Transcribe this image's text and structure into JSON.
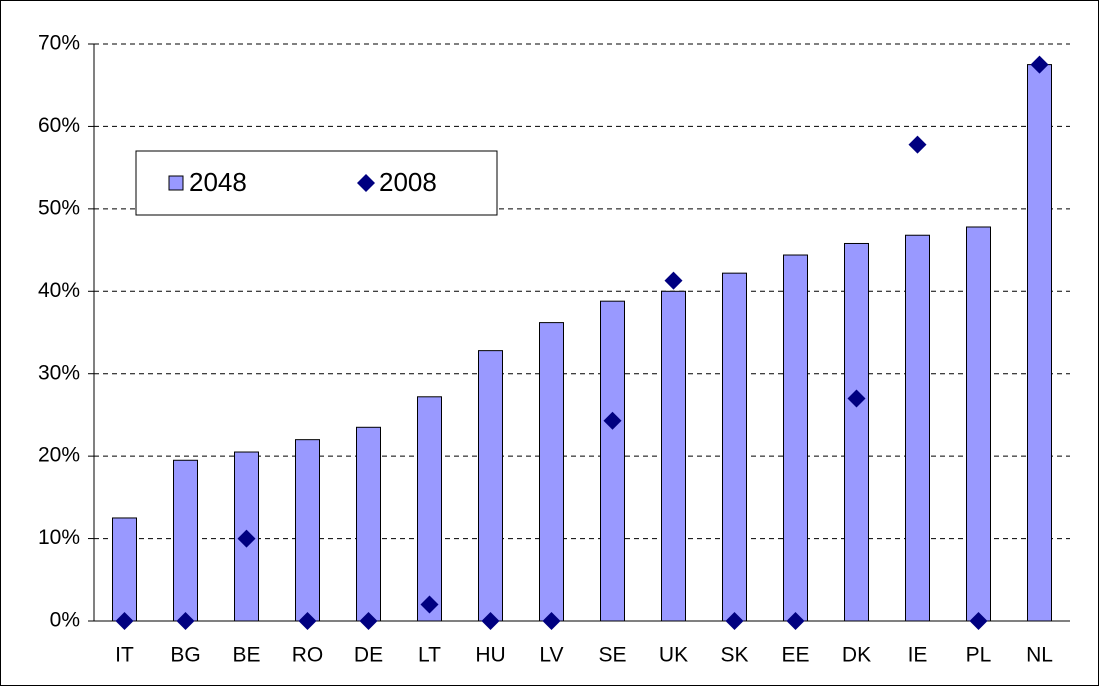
{
  "chart_data": {
    "type": "bar",
    "categories": [
      "IT",
      "BG",
      "BE",
      "RO",
      "DE",
      "LT",
      "HU",
      "LV",
      "SE",
      "UK",
      "SK",
      "EE",
      "DK",
      "IE",
      "PL",
      "NL"
    ],
    "series": [
      {
        "name": "2048",
        "type": "bar",
        "color": "#9999ff",
        "values": [
          12.5,
          19.5,
          20.5,
          22,
          23.5,
          27.2,
          32.8,
          36.2,
          38.8,
          40,
          42.2,
          44.4,
          45.8,
          46.8,
          47.8,
          67.5
        ]
      },
      {
        "name": "2008",
        "type": "scatter",
        "color": "#000080",
        "values": [
          0,
          0,
          10,
          0,
          0,
          2,
          0,
          0,
          24.3,
          41.3,
          0,
          0,
          27,
          57.8,
          0,
          67.5
        ]
      }
    ],
    "ylim": [
      0,
      70
    ],
    "yticks": [
      {
        "value": 0,
        "label": "0%"
      },
      {
        "value": 10,
        "label": "10%"
      },
      {
        "value": 20,
        "label": "20%"
      },
      {
        "value": 30,
        "label": "30%"
      },
      {
        "value": 40,
        "label": "40%"
      },
      {
        "value": 50,
        "label": "50%"
      },
      {
        "value": 60,
        "label": "60%"
      },
      {
        "value": 70,
        "label": "70%"
      }
    ],
    "grid": true,
    "legend": "upper left"
  }
}
